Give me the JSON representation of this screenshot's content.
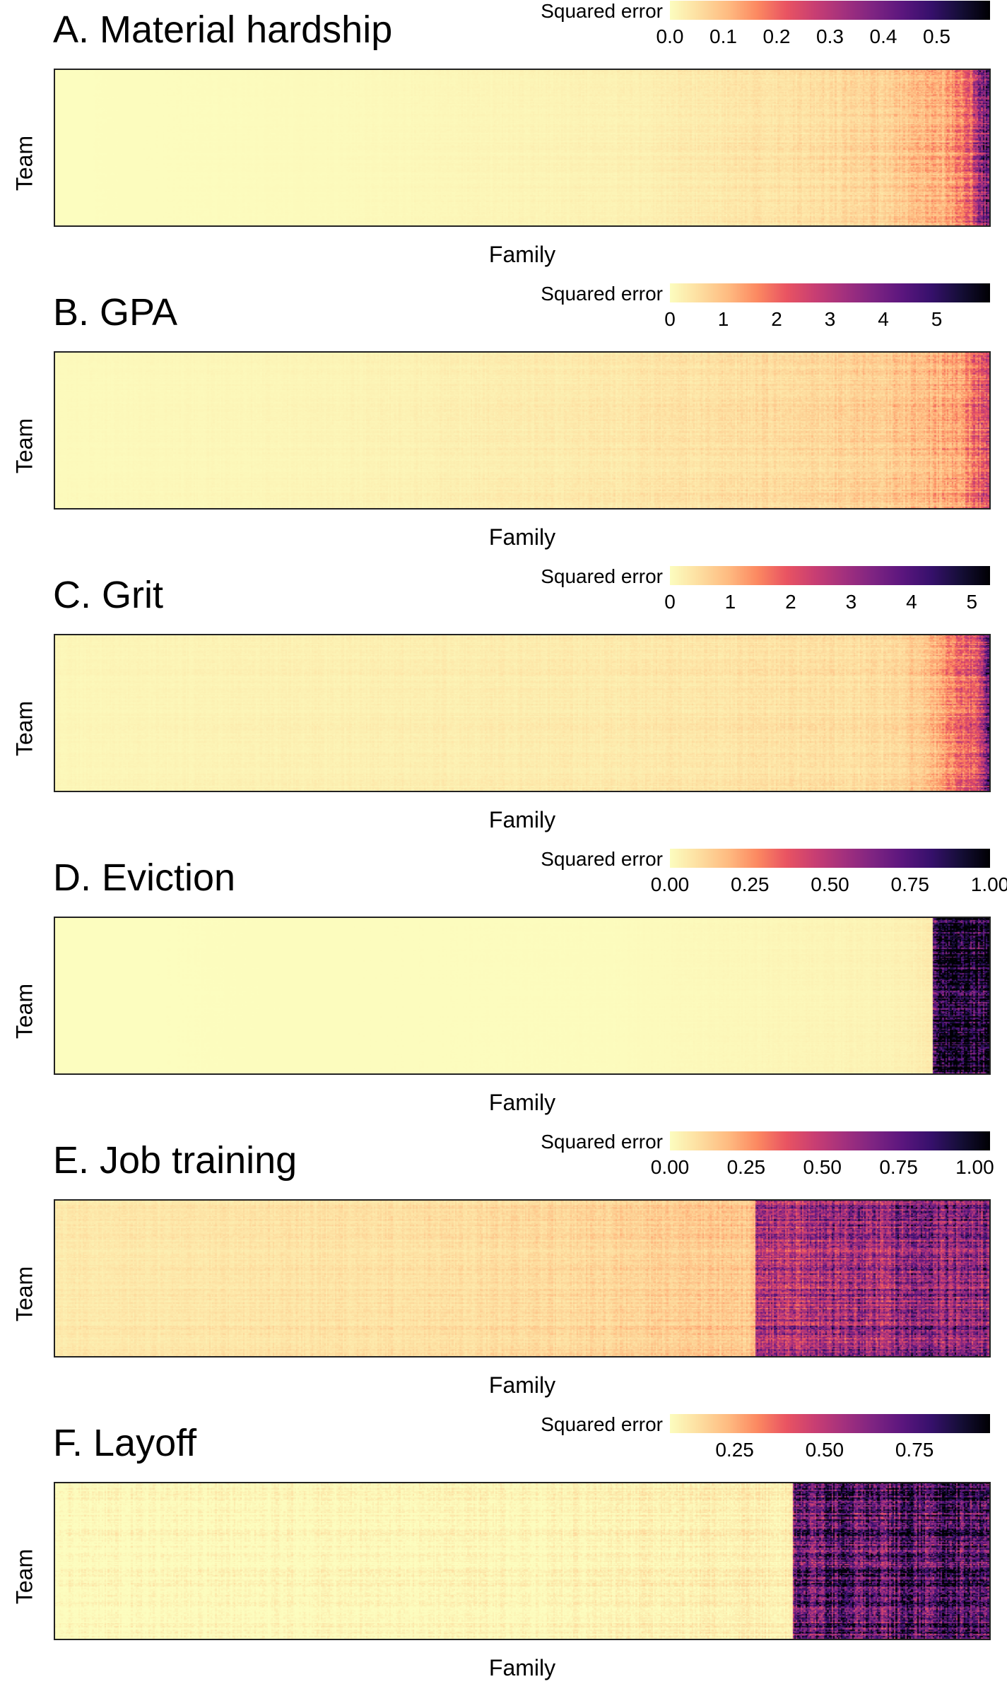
{
  "colorbar": {
    "label": "Squared error"
  },
  "colorscale": {
    "name": "magma-reversed",
    "stops": [
      "#fcfdbf",
      "#fddea0",
      "#febb81",
      "#fc8961",
      "#e95462",
      "#c83e73",
      "#a3307e",
      "#7e2482",
      "#5b167e",
      "#36106b",
      "#150e37",
      "#000004"
    ]
  },
  "chart_data": [
    {
      "type": "heatmap",
      "title": "A. Material hardship",
      "xlabel": "Family",
      "ylabel": "Team",
      "color_range": [
        0,
        0.6
      ],
      "colorbar_ticks": [
        "0.0",
        "0.1",
        "0.2",
        "0.3",
        "0.4",
        "0.5"
      ],
      "colorbar_tick_values": [
        0.0,
        0.1,
        0.2,
        0.3,
        0.4,
        0.5
      ],
      "description_points": {
        "family_fraction": [
          0.0,
          0.3,
          0.6,
          0.8,
          0.9,
          0.95,
          0.98,
          1.0
        ],
        "typical_error": [
          0.0,
          0.005,
          0.02,
          0.05,
          0.08,
          0.12,
          0.2,
          0.45
        ]
      }
    },
    {
      "type": "heatmap",
      "title": "B. GPA",
      "xlabel": "Family",
      "ylabel": "Team",
      "color_range": [
        0,
        6
      ],
      "colorbar_ticks": [
        "0",
        "1",
        "2",
        "3",
        "4",
        "5"
      ],
      "colorbar_tick_values": [
        0,
        1,
        2,
        3,
        4,
        5
      ],
      "description_points": {
        "family_fraction": [
          0.0,
          0.3,
          0.6,
          0.8,
          0.9,
          0.97,
          1.0
        ],
        "typical_error": [
          0.05,
          0.15,
          0.35,
          0.6,
          0.85,
          1.3,
          2.4
        ]
      }
    },
    {
      "type": "heatmap",
      "title": "C. Grit",
      "xlabel": "Family",
      "ylabel": "Team",
      "color_range": [
        0,
        5.3
      ],
      "colorbar_ticks": [
        "0",
        "1",
        "2",
        "3",
        "4",
        "5"
      ],
      "colorbar_tick_values": [
        0,
        1,
        2,
        3,
        4,
        5
      ],
      "description_points": {
        "family_fraction": [
          0.0,
          0.3,
          0.6,
          0.9,
          0.94,
          0.98,
          1.0
        ],
        "typical_error": [
          0.1,
          0.2,
          0.3,
          0.5,
          1.0,
          1.8,
          3.6
        ]
      }
    },
    {
      "type": "heatmap",
      "title": "D. Eviction",
      "xlabel": "Family",
      "ylabel": "Team",
      "color_range": [
        0,
        1.0
      ],
      "colorbar_ticks": [
        "0.00",
        "0.25",
        "0.50",
        "0.75",
        "1.00"
      ],
      "colorbar_tick_values": [
        0.0,
        0.25,
        0.5,
        0.75,
        1.0
      ],
      "description_points": {
        "family_fraction": [
          0.0,
          0.6,
          0.9,
          0.94,
          0.941,
          1.0
        ],
        "typical_error": [
          0.0,
          0.005,
          0.03,
          0.05,
          0.88,
          0.92
        ]
      }
    },
    {
      "type": "heatmap",
      "title": "E. Job training",
      "xlabel": "Family",
      "ylabel": "Team",
      "color_range": [
        0,
        1.05
      ],
      "colorbar_ticks": [
        "0.00",
        "0.25",
        "0.50",
        "0.75",
        "1.00"
      ],
      "colorbar_tick_values": [
        0.0,
        0.25,
        0.5,
        0.75,
        1.0
      ],
      "description_points": {
        "family_fraction": [
          0.0,
          0.5,
          0.75,
          0.751,
          1.0
        ],
        "typical_error": [
          0.06,
          0.1,
          0.16,
          0.55,
          0.68
        ]
      }
    },
    {
      "type": "heatmap",
      "title": "F. Layoff",
      "xlabel": "Family",
      "ylabel": "Team",
      "color_range": [
        0.07,
        0.96
      ],
      "colorbar_ticks": [
        "0.25",
        "0.50",
        "0.75"
      ],
      "colorbar_tick_values": [
        0.25,
        0.5,
        0.75
      ],
      "description_points": {
        "family_fraction": [
          0.0,
          0.5,
          0.79,
          0.791,
          1.0
        ],
        "typical_error": [
          0.08,
          0.09,
          0.11,
          0.72,
          0.8
        ]
      }
    }
  ]
}
